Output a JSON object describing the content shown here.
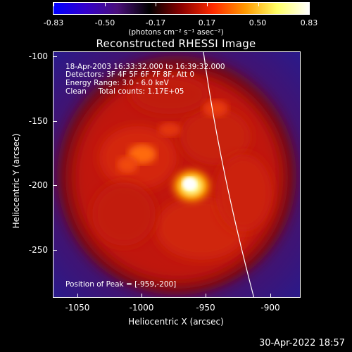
{
  "colorbar": {
    "tick_labels": [
      "-0.83",
      "-0.50",
      "-0.17",
      "0.17",
      "0.50",
      "0.83"
    ],
    "units": "(photons cm⁻² s⁻¹ asec⁻²)",
    "gradient_colors": [
      "#0000ff",
      "#3300cc",
      "#4a0f7a",
      "#000000",
      "#8b0000",
      "#ff2a00",
      "#ff9900",
      "#ffff66",
      "#ffffff"
    ]
  },
  "title": "Reconstructed RHESSI Image",
  "annotations": {
    "time_range": "18-Apr-2003 16:33:32.000 to 16:39:32.000",
    "detectors": "Detectors: 3F 4F 5F 6F 7F 8F, Att 0",
    "energy_range": "Energy Range: 3.0 - 6.0 keV",
    "clean_counts": "Clean     Total counts: 1.17E+05",
    "peak_position": "Position of Peak = [-959,-200]"
  },
  "axes": {
    "x_title": "Heliocentric X (arcsec)",
    "y_title": "Heliocentric Y (arcsec)",
    "x_tick_labels": [
      "-1050",
      "-1000",
      "-950",
      "-900"
    ],
    "y_tick_labels": [
      "-100",
      "-150",
      "-200",
      "-250"
    ]
  },
  "timestamp": "30-Apr-2022 18:57"
}
